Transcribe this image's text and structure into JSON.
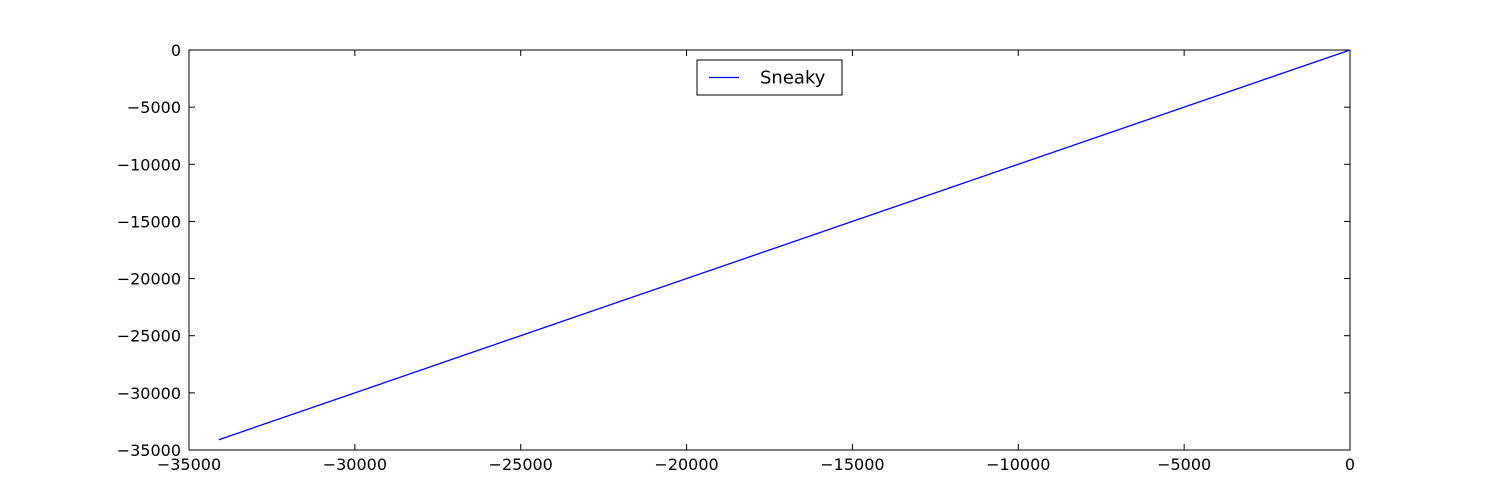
{
  "chart_data": {
    "type": "line",
    "title": "",
    "xlabel": "",
    "ylabel": "",
    "xlim": [
      -35000,
      0
    ],
    "ylim": [
      -35000,
      0
    ],
    "x_ticks": [
      -35000,
      -30000,
      -25000,
      -20000,
      -15000,
      -10000,
      -5000,
      0
    ],
    "y_ticks": [
      -35000,
      -30000,
      -25000,
      -20000,
      -15000,
      -10000,
      -5000,
      0
    ],
    "x_tick_labels": [
      "−35000",
      "−30000",
      "−25000",
      "−20000",
      "−15000",
      "−10000",
      "−5000",
      "0"
    ],
    "y_tick_labels": [
      "−35000",
      "−30000",
      "−25000",
      "−20000",
      "−15000",
      "−10000",
      "−5000",
      "0"
    ],
    "grid": false,
    "legend_position": "upper-center",
    "series": [
      {
        "name": "Sneaky",
        "color": "#0000ff",
        "x": [
          -34100,
          0
        ],
        "y": [
          -34100,
          0
        ]
      }
    ]
  }
}
